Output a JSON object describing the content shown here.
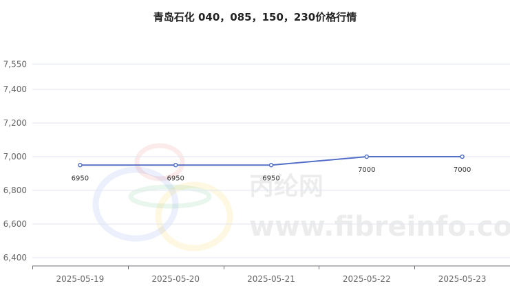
{
  "chart_data": {
    "type": "line",
    "title": "青岛石化 040，085，150，230价格行情",
    "xlabel": "",
    "ylabel": "",
    "categories": [
      "2025-05-19",
      "2025-05-20",
      "2025-05-21",
      "2025-05-22",
      "2025-05-23"
    ],
    "series": [
      {
        "values": [
          6950,
          6950,
          6950,
          7000,
          7000
        ]
      }
    ],
    "data_labels": [
      "6950",
      "6950",
      "6950",
      "7000",
      "7000"
    ],
    "y_ticks": [
      {
        "value": 6400,
        "label": "6,400"
      },
      {
        "value": 6600,
        "label": "6,600"
      },
      {
        "value": 6800,
        "label": "6,800"
      },
      {
        "value": 7000,
        "label": "7,000"
      },
      {
        "value": 7200,
        "label": "7,200"
      },
      {
        "value": 7400,
        "label": "7,400"
      },
      {
        "value": 7550,
        "label": "7,550"
      }
    ],
    "ylim": [
      6350,
      7550
    ],
    "grid": true,
    "line_color": "#5470c6"
  },
  "watermark": {
    "brand": "丙纶网",
    "url": "www.fibreinfo.com"
  }
}
